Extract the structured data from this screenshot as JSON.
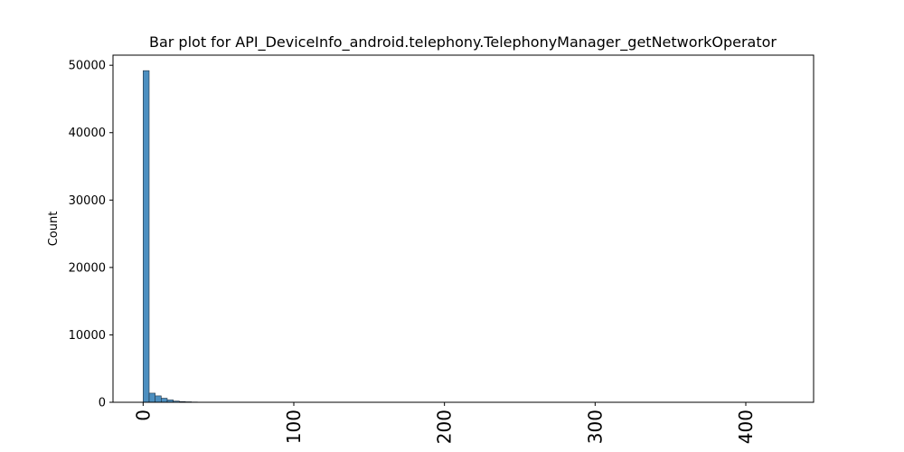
{
  "chart_data": {
    "type": "bar",
    "title": "Bar plot for API_DeviceInfo_android.telephony.TelephonyManager_getNetworkOperator",
    "xlabel": "",
    "ylabel": "Count",
    "xlim": [
      -20,
      445
    ],
    "ylim": [
      0,
      51500
    ],
    "x_ticks": [
      0,
      100,
      200,
      300,
      400
    ],
    "x_tick_labels": [
      "0",
      "100",
      "200",
      "300",
      "400"
    ],
    "y_ticks": [
      0,
      10000,
      20000,
      30000,
      40000,
      50000
    ],
    "y_tick_labels": [
      "0",
      "10000",
      "20000",
      "30000",
      "40000",
      "50000"
    ],
    "grid": false,
    "bar_color": "#4c8fc0",
    "bins": [
      {
        "x0": 0,
        "x1": 4,
        "value": 49200
      },
      {
        "x0": 4,
        "x1": 8,
        "value": 1350
      },
      {
        "x0": 8,
        "x1": 12,
        "value": 950
      },
      {
        "x0": 12,
        "x1": 16,
        "value": 600
      },
      {
        "x0": 16,
        "x1": 20,
        "value": 350
      },
      {
        "x0": 20,
        "x1": 24,
        "value": 180
      },
      {
        "x0": 24,
        "x1": 28,
        "value": 110
      },
      {
        "x0": 28,
        "x1": 32,
        "value": 70
      },
      {
        "x0": 32,
        "x1": 36,
        "value": 40
      },
      {
        "x0": 36,
        "x1": 40,
        "value": 25
      },
      {
        "x0": 40,
        "x1": 44,
        "value": 12
      },
      {
        "x0": 44,
        "x1": 48,
        "value": 8
      },
      {
        "x0": 48,
        "x1": 52,
        "value": 5
      },
      {
        "x0": 52,
        "x1": 56,
        "value": 3
      },
      {
        "x0": 56,
        "x1": 60,
        "value": 2
      }
    ]
  }
}
